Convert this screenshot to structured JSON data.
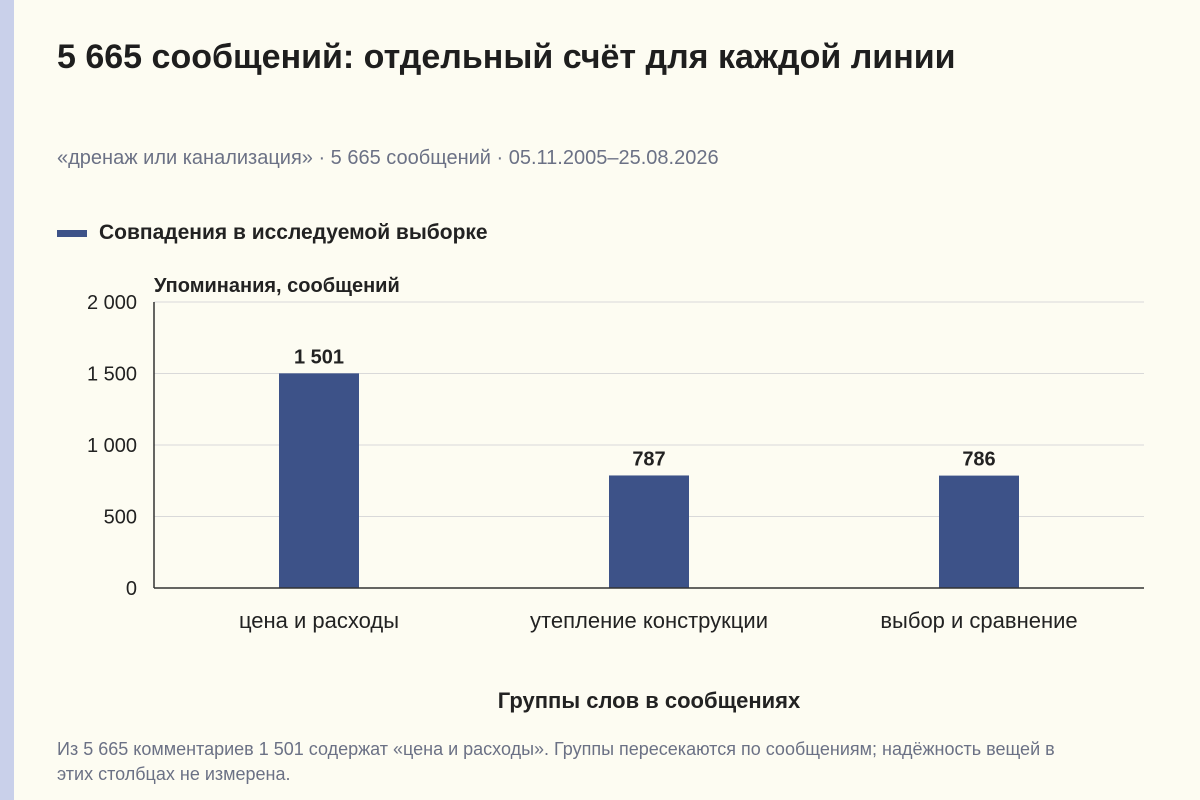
{
  "colors": {
    "bar": "#3d5288",
    "grid": "#d9d9d9",
    "axis": "#333333",
    "muted_text": "#6b7185"
  },
  "header": {
    "title": "5 665 сообщений: отдельный счёт для каждой линии",
    "subtitle": "«дренаж или канализация» · 5 665 сообщений · 05.11.2005–25.08.2026"
  },
  "chart_data": {
    "type": "bar",
    "categories": [
      "цена и расходы",
      "утепление конструкции",
      "выбор и сравнение"
    ],
    "series": [
      {
        "name": "Совпадения в исследуемой выборке",
        "values": [
          1501,
          787,
          786
        ]
      }
    ],
    "value_labels": [
      "1 501",
      "787",
      "786"
    ],
    "ylabel": "Упоминания, сообщений",
    "xlabel": "Группы слов в сообщениях",
    "ylim": [
      0,
      2000
    ],
    "yticks": [
      0,
      500,
      1000,
      1500,
      2000
    ],
    "ytick_labels": [
      "0",
      "500",
      "1 000",
      "1 500",
      "2 000"
    ],
    "grid": true,
    "legend_position": "top-left"
  },
  "footnote": "Из 5 665 комментариев 1 501 содержат «цена и расходы». Группы пересекаются по сообщениям; надёжность вещей в этих столбцах не измерена."
}
